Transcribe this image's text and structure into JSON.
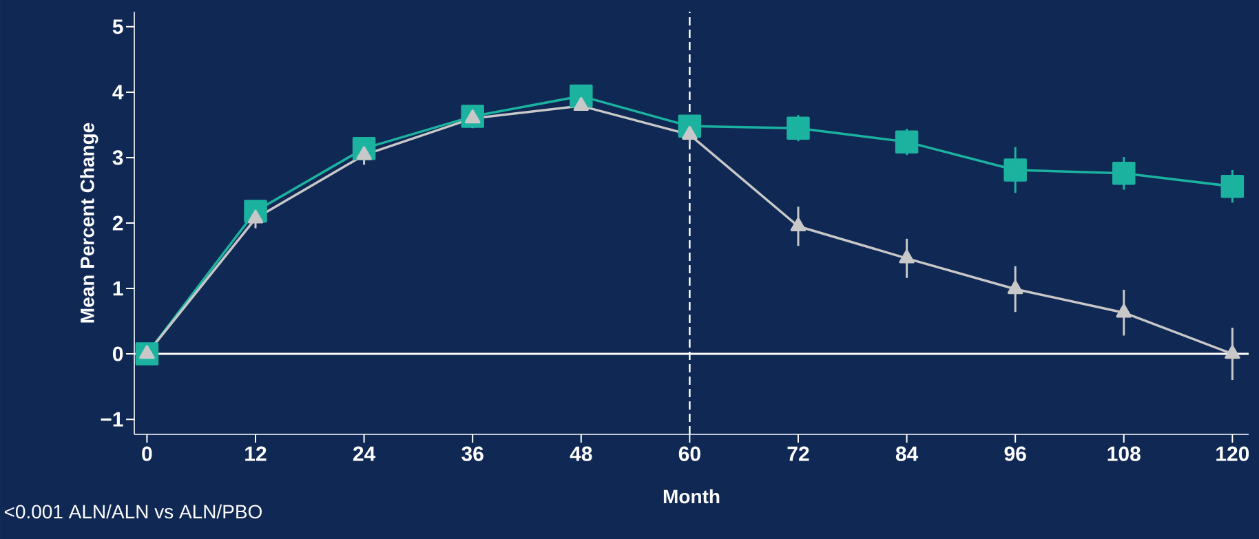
{
  "chart_data": {
    "type": "line",
    "xlabel": "Month",
    "ylabel": "Mean Percent Change",
    "x": [
      0,
      12,
      24,
      36,
      48,
      60,
      72,
      84,
      96,
      108,
      120
    ],
    "series": [
      {
        "color": "#1bb3a0",
        "marker": "square",
        "values": [
          0,
          2.18,
          3.14,
          3.63,
          3.94,
          3.48,
          3.45,
          3.24,
          2.81,
          2.76,
          2.56
        ],
        "errors": [
          0.1,
          0.15,
          0.15,
          0.15,
          0.15,
          0.15,
          0.2,
          0.2,
          0.35,
          0.25,
          0.25
        ]
      },
      {
        "color": "#c8c8c8",
        "marker": "triangle",
        "values": [
          0,
          2.07,
          3.04,
          3.6,
          3.79,
          3.35,
          1.95,
          1.46,
          0.99,
          0.63,
          0
        ],
        "errors": [
          0.1,
          0.15,
          0.15,
          0.15,
          null,
          0.15,
          0.3,
          0.3,
          0.35,
          0.35,
          0.4
        ]
      }
    ],
    "xlim": [
      -1.4,
      121.8
    ],
    "ylim": [
      -1.23,
      5.23
    ],
    "xticks": [
      0,
      12,
      24,
      36,
      48,
      60,
      72,
      84,
      96,
      108,
      120
    ],
    "yticks": [
      {
        "value": -1,
        "label": "−1"
      },
      0,
      1,
      2,
      3,
      4,
      5
    ],
    "ref_lines": [
      {
        "axis": "x",
        "value": 60,
        "color": "#ffffff",
        "line_style": "dashed"
      },
      {
        "axis": "y",
        "value": 0,
        "color": "#ffffff",
        "line_style": "solid"
      }
    ],
    "annotations": [
      "<0.001 ALN/ALN vs ALN/PBO"
    ],
    "line_style": "solid"
  }
}
